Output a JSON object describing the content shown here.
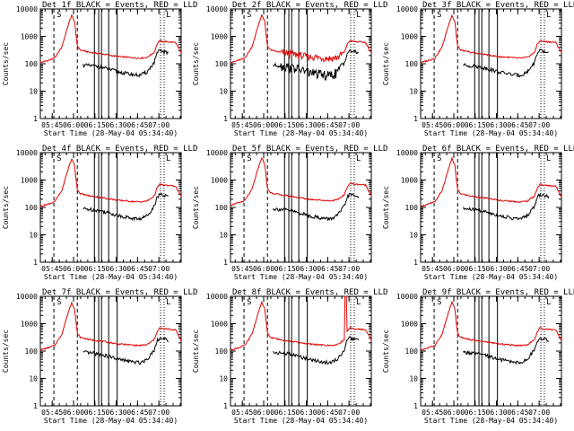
{
  "chart_data": {
    "type": "line",
    "series_names": {
      "black": "Events",
      "red": "LLD"
    },
    "colors": {
      "black": "#000000",
      "red": "#e00000",
      "axes": "#000000"
    },
    "shared": {
      "ylabel": "Counts/sec",
      "xlabel": "Start Time (28-May-04 05:34:40)",
      "ylim": [
        1,
        10000
      ],
      "y_ticks": [
        1,
        10,
        100,
        1000,
        10000
      ],
      "y_tick_labels": [
        "1",
        "10",
        "100",
        "1000",
        "10000"
      ],
      "xlim_minutes": [
        0,
        99
      ],
      "x_ticks_minutes": [
        8.33,
        23.33,
        38.33,
        53.33,
        68.33,
        83.33
      ],
      "x_tick_labels": [
        "05:45",
        "06:00",
        "06:15",
        "06:30",
        "06:45",
        "07:00"
      ],
      "markers": {
        "S": "S",
        "L": "L"
      },
      "title_parts": {
        "black_word": "BLACK",
        "eq": "=",
        "events": "Events,",
        "red_word": "RED",
        "lld": "LLD"
      },
      "dashed_lines_minutes": [
        9.5,
        26.0
      ],
      "solid_lines_minutes": [
        38.0,
        41.0,
        43.0,
        48.0,
        54.0
      ],
      "dotted_lines_minutes": [
        84.5,
        87.0,
        99.0
      ],
      "red_profile": {
        "x": [
          0,
          5,
          10,
          15,
          20,
          22,
          24,
          26,
          28,
          30,
          35,
          40,
          45,
          50,
          55,
          60,
          65,
          70,
          75,
          80,
          82,
          84,
          86,
          90,
          95,
          99
        ],
        "y": [
          110,
          130,
          160,
          400,
          3000,
          6000,
          3500,
          450,
          320,
          300,
          260,
          240,
          220,
          200,
          180,
          175,
          165,
          160,
          170,
          260,
          500,
          700,
          650,
          630,
          600,
          250
        ]
      },
      "black_profile": {
        "x": [
          30,
          35,
          40,
          45,
          50,
          55,
          60,
          65,
          70,
          75,
          80,
          82,
          84,
          86,
          90
        ],
        "y": [
          90,
          85,
          80,
          70,
          60,
          50,
          45,
          40,
          38,
          50,
          110,
          240,
          300,
          280,
          250
        ]
      }
    },
    "panels": [
      {
        "title": "Det_1f",
        "red_scale": 1.0,
        "black_scale": 1.0,
        "noisy_red": false
      },
      {
        "title": "Det_2f",
        "red_scale": 1.0,
        "black_scale": 1.0,
        "noisy_red": true
      },
      {
        "title": "Det_3f",
        "red_scale": 1.0,
        "black_scale": 1.0,
        "noisy_red": false
      },
      {
        "title": "Det_4f",
        "red_scale": 1.0,
        "black_scale": 1.0,
        "noisy_red": false
      },
      {
        "title": "Det_5f",
        "red_scale": 1.1,
        "black_scale": 1.0,
        "noisy_red": false
      },
      {
        "title": "Det_6f",
        "red_scale": 1.0,
        "black_scale": 1.0,
        "noisy_red": false
      },
      {
        "title": "Det_7f",
        "red_scale": 1.0,
        "black_scale": 1.0,
        "noisy_red": false
      },
      {
        "title": "Det_8f",
        "red_scale": 1.0,
        "black_scale": 1.0,
        "noisy_red": false,
        "spike_minute": 81,
        "spike_value": 10000
      },
      {
        "title": "Det_9f",
        "red_scale": 1.0,
        "black_scale": 1.0,
        "noisy_red": false
      }
    ]
  }
}
